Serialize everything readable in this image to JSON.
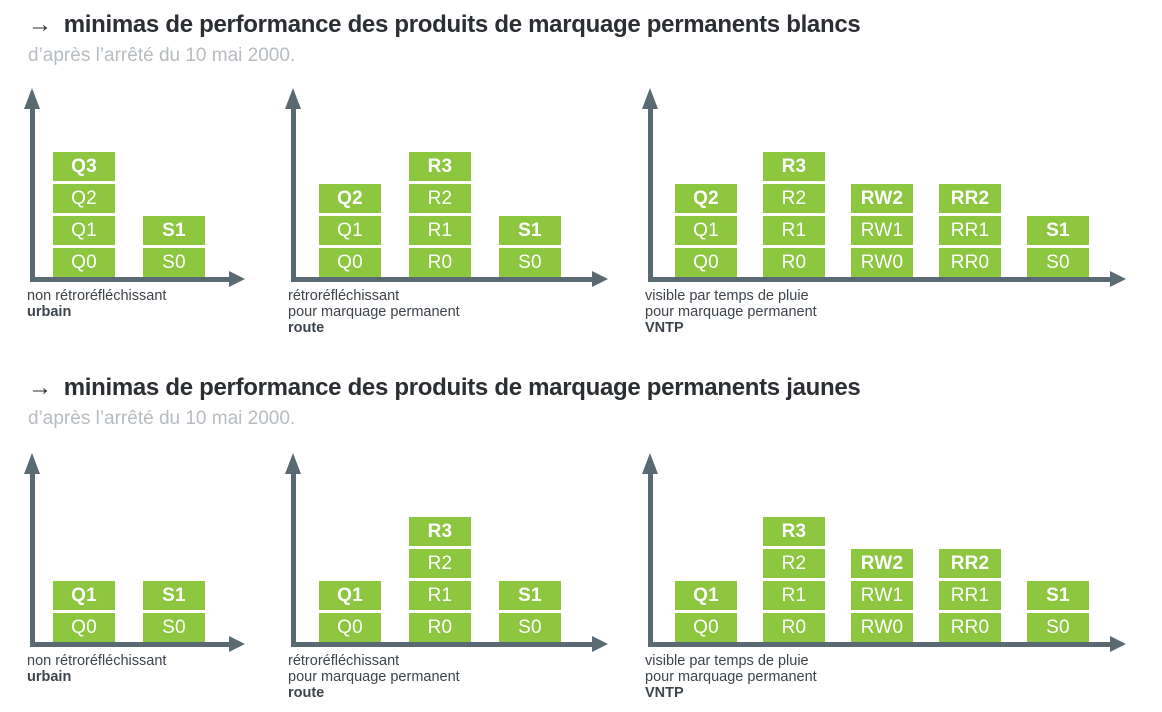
{
  "colors": {
    "block_green": "#8dc63f",
    "axis_gray": "#5a6a73",
    "title_dark": "#2b2e32",
    "subtitle_gray": "#b7bcc1",
    "caption_gray": "#3d444b",
    "block_text": "#ffffff"
  },
  "sections": [
    {
      "arrow": "→",
      "title": "minimas de performance des produits de marquage permanents blancs",
      "subtitle": "d’après l’arrêté du 10 mai 2000.",
      "charts": [
        {
          "id": "blancs-urbain",
          "caption_lines": [
            "non rétroréfléchissant"
          ],
          "caption_bold": "urbain",
          "columns": [
            {
              "name": "Q",
              "blocks_top_down": [
                "Q3",
                "Q2",
                "Q1",
                "Q0"
              ]
            },
            {
              "name": "S",
              "blocks_top_down": [
                "S1",
                "S0"
              ]
            }
          ]
        },
        {
          "id": "blancs-route",
          "caption_lines": [
            "rétroréfléchissant",
            "pour marquage permanent"
          ],
          "caption_bold": "route",
          "columns": [
            {
              "name": "Q",
              "blocks_top_down": [
                "Q2",
                "Q1",
                "Q0"
              ]
            },
            {
              "name": "R",
              "blocks_top_down": [
                "R3",
                "R2",
                "R1",
                "R0"
              ]
            },
            {
              "name": "S",
              "blocks_top_down": [
                "S1",
                "S0"
              ]
            }
          ]
        },
        {
          "id": "blancs-vntp",
          "caption_lines": [
            "visible par temps de pluie",
            "pour marquage permanent"
          ],
          "caption_bold": "VNTP",
          "columns": [
            {
              "name": "Q",
              "blocks_top_down": [
                "Q2",
                "Q1",
                "Q0"
              ]
            },
            {
              "name": "R",
              "blocks_top_down": [
                "R3",
                "R2",
                "R1",
                "R0"
              ]
            },
            {
              "name": "RW",
              "blocks_top_down": [
                "RW2",
                "RW1",
                "RW0"
              ]
            },
            {
              "name": "RR",
              "blocks_top_down": [
                "RR2",
                "RR1",
                "RR0"
              ]
            },
            {
              "name": "S",
              "blocks_top_down": [
                "S1",
                "S0"
              ]
            }
          ]
        }
      ]
    },
    {
      "arrow": "→",
      "title": "minimas de performance des produits de marquage permanents jaunes",
      "subtitle": "d’après l’arrêté du 10 mai 2000.",
      "charts": [
        {
          "id": "jaunes-urbain",
          "caption_lines": [
            "non rétroréfléchissant"
          ],
          "caption_bold": "urbain",
          "columns": [
            {
              "name": "Q",
              "blocks_top_down": [
                "Q1",
                "Q0"
              ]
            },
            {
              "name": "S",
              "blocks_top_down": [
                "S1",
                "S0"
              ]
            }
          ]
        },
        {
          "id": "jaunes-route",
          "caption_lines": [
            "rétroréfléchissant",
            "pour marquage permanent"
          ],
          "caption_bold": "route",
          "columns": [
            {
              "name": "Q",
              "blocks_top_down": [
                "Q1",
                "Q0"
              ]
            },
            {
              "name": "R",
              "blocks_top_down": [
                "R3",
                "R2",
                "R1",
                "R0"
              ]
            },
            {
              "name": "S",
              "blocks_top_down": [
                "S1",
                "S0"
              ]
            }
          ]
        },
        {
          "id": "jaunes-vntp",
          "caption_lines": [
            "visible par temps de pluie",
            "pour marquage permanent"
          ],
          "caption_bold": "VNTP",
          "columns": [
            {
              "name": "Q",
              "blocks_top_down": [
                "Q1",
                "Q0"
              ]
            },
            {
              "name": "R",
              "blocks_top_down": [
                "R3",
                "R2",
                "R1",
                "R0"
              ]
            },
            {
              "name": "RW",
              "blocks_top_down": [
                "RW2",
                "RW1",
                "RW0"
              ]
            },
            {
              "name": "RR",
              "blocks_top_down": [
                "RR2",
                "RR1",
                "RR0"
              ]
            },
            {
              "name": "S",
              "blocks_top_down": [
                "S1",
                "S0"
              ]
            }
          ]
        }
      ]
    }
  ]
}
